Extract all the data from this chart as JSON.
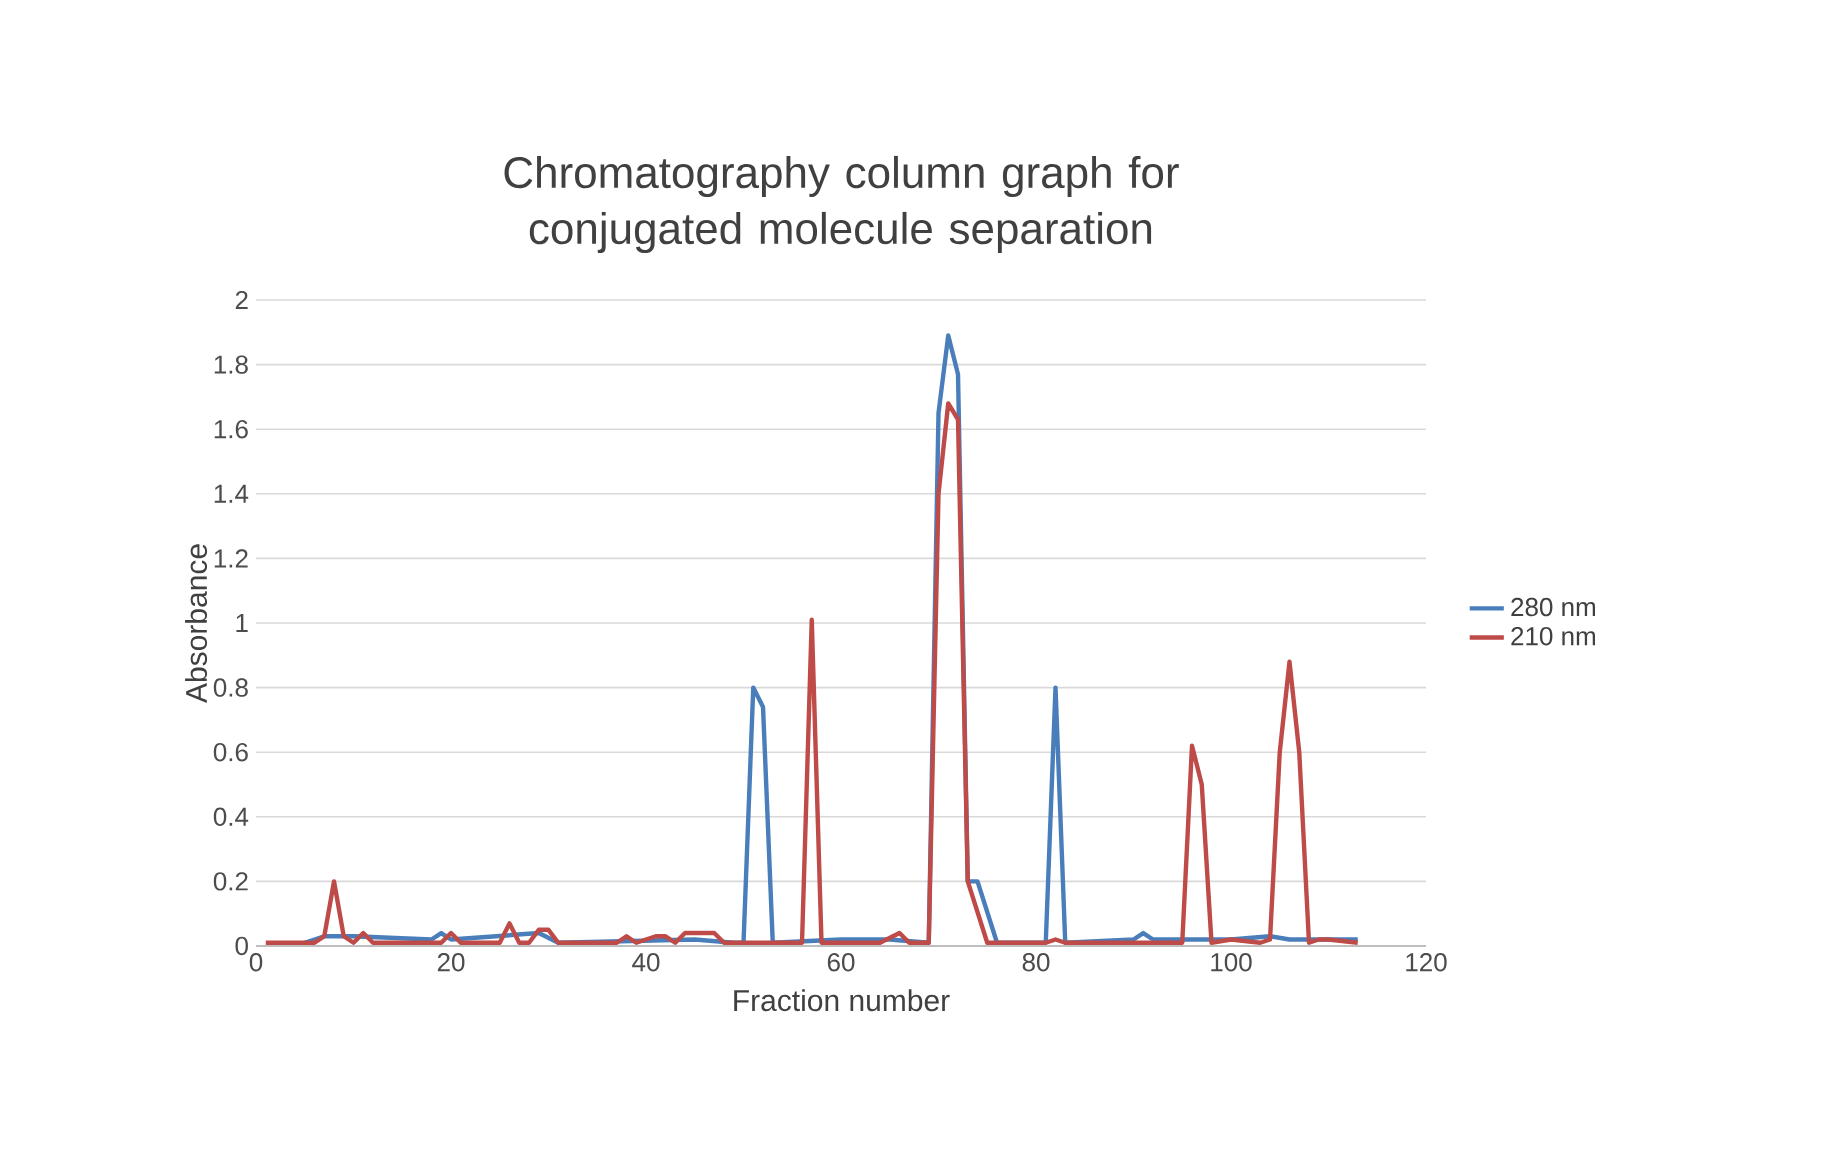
{
  "chart_data": {
    "type": "line",
    "title": "Chromatography column graph for conjugated molecule separation",
    "xlabel": "Fraction number",
    "ylabel": "Absorbance",
    "xlim": [
      0,
      120
    ],
    "xticks": [
      0,
      20,
      40,
      60,
      80,
      100,
      120
    ],
    "ylim": [
      0,
      2
    ],
    "yticks": [
      0,
      0.2,
      0.4,
      0.6,
      0.8,
      1,
      1.2,
      1.4,
      1.6,
      1.8,
      2
    ],
    "grid": "y",
    "legend": "right",
    "marker": "none",
    "line_style": "solid",
    "series": [
      {
        "name": "280  nm",
        "color": "#4a7ebb",
        "x": [
          5,
          7,
          10,
          18,
          19,
          20,
          29,
          31,
          45,
          49,
          50,
          51,
          52,
          53,
          60,
          65,
          69,
          70,
          71,
          72,
          73,
          74,
          76,
          81,
          82,
          83,
          90,
          91,
          92,
          100,
          104,
          106,
          108,
          110,
          113
        ],
        "values": [
          0.01,
          0.03,
          0.03,
          0.02,
          0.04,
          0.02,
          0.04,
          0.01,
          0.02,
          0.01,
          0.01,
          0.8,
          0.74,
          0.01,
          0.02,
          0.02,
          0.01,
          1.65,
          1.89,
          1.77,
          0.2,
          0.2,
          0.01,
          0.01,
          0.8,
          0.01,
          0.02,
          0.04,
          0.02,
          0.02,
          0.03,
          0.02,
          0.02,
          0.02,
          0.02
        ]
      },
      {
        "name": "210  nm",
        "color": "#be4b48",
        "x": [
          1,
          6,
          7,
          8,
          9,
          10,
          11,
          12,
          19,
          20,
          21,
          25,
          26,
          27,
          28,
          29,
          30,
          31,
          37,
          38,
          39,
          41,
          42,
          43,
          44,
          47,
          48,
          55,
          56,
          57,
          58,
          64,
          66,
          67,
          69,
          70,
          71,
          72,
          73,
          75,
          81,
          82,
          83,
          95,
          96,
          97,
          98,
          100,
          103,
          104,
          105,
          106,
          107,
          108,
          109,
          110,
          113
        ],
        "values": [
          0.01,
          0.01,
          0.03,
          0.2,
          0.03,
          0.01,
          0.04,
          0.01,
          0.01,
          0.04,
          0.01,
          0.01,
          0.07,
          0.01,
          0.01,
          0.05,
          0.05,
          0.01,
          0.01,
          0.03,
          0.01,
          0.03,
          0.03,
          0.01,
          0.04,
          0.04,
          0.01,
          0.01,
          0.01,
          1.01,
          0.01,
          0.01,
          0.04,
          0.01,
          0.01,
          1.4,
          1.68,
          1.63,
          0.2,
          0.01,
          0.01,
          0.02,
          0.01,
          0.01,
          0.62,
          0.5,
          0.01,
          0.02,
          0.01,
          0.02,
          0.6,
          0.88,
          0.6,
          0.01,
          0.02,
          0.02,
          0.01
        ]
      }
    ]
  }
}
